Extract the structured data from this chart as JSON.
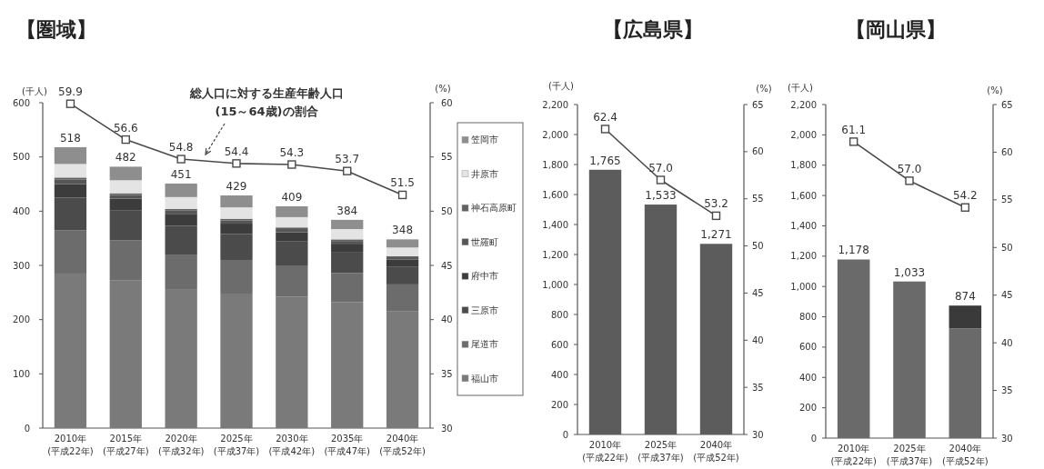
{
  "chart_data": [
    {
      "type": "bar",
      "title": "【圏域】",
      "ylabel": "(千人)",
      "y2label": "(%)",
      "stacked": true,
      "legend": "right",
      "categories": [
        "2010年\n(平成22年)",
        "2015年\n(平成27年)",
        "2020年\n(平成32年)",
        "2025年\n(平成37年)",
        "2030年\n(平成42年)",
        "2035年\n(平成47年)",
        "2040年\n(平成52年)"
      ],
      "series": [
        {
          "name": "福山市",
          "color": "#7a7a7a",
          "values": [
            285,
            272,
            255,
            248,
            242,
            232,
            215
          ]
        },
        {
          "name": "尾道市",
          "color": "#6c6c6c",
          "values": [
            80,
            74,
            65,
            62,
            58,
            54,
            50
          ]
        },
        {
          "name": "三原市",
          "color": "#4b4b4b",
          "values": [
            60,
            55,
            53,
            48,
            44,
            39,
            33
          ]
        },
        {
          "name": "府中市",
          "color": "#3c3c3c",
          "values": [
            25,
            22,
            21,
            19,
            17,
            15,
            13
          ]
        },
        {
          "name": "世羅町",
          "color": "#565656",
          "values": [
            8,
            7,
            7,
            6,
            6,
            5,
            4
          ]
        },
        {
          "name": "神石高原町",
          "color": "#626262",
          "values": [
            4,
            3,
            3,
            3,
            3,
            3,
            2
          ]
        },
        {
          "name": "井原市",
          "color": "#e4e4e4",
          "values": [
            25,
            24,
            22,
            21,
            19,
            19,
            16
          ]
        },
        {
          "name": "笠岡市",
          "color": "#8e8e8e",
          "values": [
            31,
            25,
            25,
            22,
            20,
            17,
            15
          ]
        },
        {
          "type": "line",
          "axis": "y2",
          "color": "#4a4a4a",
          "marker": "square",
          "values": [
            59.9,
            56.6,
            54.8,
            54.4,
            54.3,
            53.7,
            51.5
          ],
          "value_labels": [
            "59.9",
            "56.6",
            "54.8",
            "54.4",
            "54.3",
            "53.7",
            "51.5"
          ]
        }
      ],
      "totals": [
        "518",
        "482",
        "451",
        "429",
        "409",
        "384",
        "348"
      ],
      "ylim": [
        0,
        600
      ],
      "yticks": [
        0,
        100,
        200,
        300,
        400,
        500,
        600
      ],
      "y2lim": [
        30,
        60
      ],
      "y2ticks": [
        30,
        35,
        40,
        45,
        50,
        55,
        60
      ],
      "annotations": [
        "総人口に対する生産年齢人口\n(15～64歳)の割合"
      ]
    },
    {
      "type": "bar",
      "title": "【広島県】",
      "ylabel": "(千人)",
      "y2label": "(%)",
      "categories": [
        "2010年\n(平成22年)",
        "2025年\n(平成37年)",
        "2040年\n(平成52年)"
      ],
      "series": [
        {
          "color": "#5c5c5c",
          "values": [
            1765,
            1533,
            1271
          ],
          "value_labels": [
            "1,765",
            "1,533",
            "1,271"
          ]
        },
        {
          "type": "line",
          "axis": "y2",
          "color": "#4a4a4a",
          "marker": "square",
          "values": [
            62.4,
            57.0,
            53.2
          ],
          "value_labels": [
            "62.4",
            "57.0",
            "53.2"
          ]
        }
      ],
      "ylim": [
        0,
        2200
      ],
      "yticks": [
        0,
        200,
        400,
        600,
        800,
        {
          "value": 1000,
          "label": "1,000"
        },
        {
          "value": 1200,
          "label": "1,200"
        },
        {
          "value": 1400,
          "label": "1,400"
        },
        {
          "value": 1600,
          "label": "1,600"
        },
        {
          "value": 1800,
          "label": "1,800"
        },
        {
          "value": 2000,
          "label": "2,000"
        },
        {
          "value": 2200,
          "label": "2,200"
        }
      ],
      "y2lim": [
        30,
        65
      ],
      "y2ticks": [
        30,
        35,
        40,
        45,
        50,
        55,
        60,
        65
      ]
    },
    {
      "type": "bar",
      "title": "【岡山県】",
      "ylabel": "(千人)",
      "y2label": "(%)",
      "stacked": true,
      "categories": [
        "2010年\n(平成22年)",
        "2025年\n(平成37年)",
        "2040年\n(平成52年)"
      ],
      "series": [
        {
          "color": "#6a6a6a",
          "values": [
            1178,
            1033,
            723
          ]
        },
        {
          "color": "#3a3a3a",
          "values": [
            null,
            null,
            151
          ]
        },
        {
          "type": "line",
          "axis": "y2",
          "color": "#4a4a4a",
          "marker": "square",
          "values": [
            61.1,
            57.0,
            54.2
          ],
          "value_labels": [
            "61.1",
            "57.0",
            "54.2"
          ]
        }
      ],
      "totals": [
        "1,178",
        "1,033",
        "874"
      ],
      "ylim": [
        0,
        2200
      ],
      "yticks": [
        0,
        200,
        400,
        600,
        800,
        {
          "value": 1000,
          "label": "1,000"
        },
        {
          "value": 1200,
          "label": "1,200"
        },
        {
          "value": 1400,
          "label": "1,400"
        },
        {
          "value": 1600,
          "label": "1,600"
        },
        {
          "value": 1800,
          "label": "1,800"
        },
        {
          "value": 2000,
          "label": "2,000"
        },
        {
          "value": 2200,
          "label": "2,200"
        }
      ],
      "y2lim": [
        30,
        65
      ],
      "y2ticks": [
        30,
        35,
        40,
        45,
        50,
        55,
        60,
        65
      ]
    }
  ]
}
